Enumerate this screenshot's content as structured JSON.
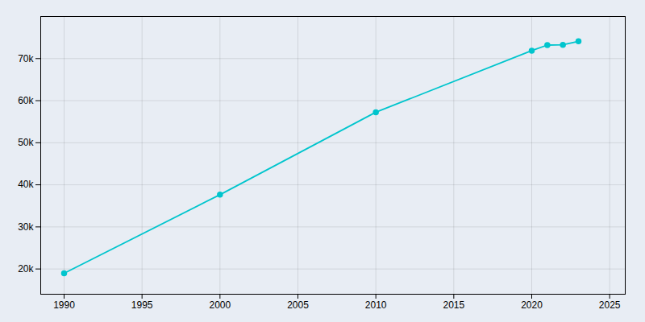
{
  "chart_data": {
    "type": "line",
    "x": [
      1990,
      2000,
      2010,
      2020,
      2021,
      2022,
      2023
    ],
    "values": [
      18985,
      37655,
      57250,
      71882,
      73205,
      73270,
      74100
    ],
    "color": "#00c5cd",
    "marker": "circle",
    "xlim": [
      1988.5,
      2026
    ],
    "ylim": [
      14000,
      80000
    ],
    "xticks": [
      1990,
      1995,
      2000,
      2005,
      2010,
      2015,
      2020,
      2025
    ],
    "yticks": [
      {
        "value": 20000,
        "label": "20k"
      },
      {
        "value": 30000,
        "label": "30k"
      },
      {
        "value": 40000,
        "label": "40k"
      },
      {
        "value": 50000,
        "label": "50k"
      },
      {
        "value": 60000,
        "label": "60k"
      },
      {
        "value": 70000,
        "label": "70k"
      }
    ],
    "grid": true
  }
}
